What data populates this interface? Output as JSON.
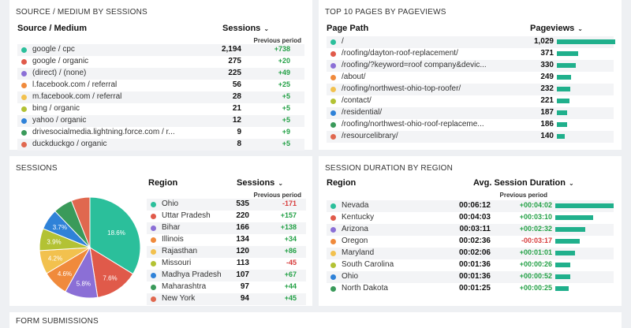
{
  "source_medium": {
    "title": "SOURCE / MEDIUM BY SESSIONS",
    "col_label": "Source / Medium",
    "col_value": "Sessions",
    "col_prev": "Previous period",
    "rows": [
      {
        "label": "google / cpc",
        "value": "2,194",
        "change": "+738",
        "color": "#2bbf9b"
      },
      {
        "label": "google / organic",
        "value": "275",
        "change": "+20",
        "color": "#e05a4a"
      },
      {
        "label": "(direct) / (none)",
        "value": "225",
        "change": "+49",
        "color": "#8b6fd6"
      },
      {
        "label": "l.facebook.com / referral",
        "value": "56",
        "change": "+25",
        "color": "#f08a3c"
      },
      {
        "label": "m.facebook.com / referral",
        "value": "28",
        "change": "+5",
        "color": "#f2c14e"
      },
      {
        "label": "bing / organic",
        "value": "21",
        "change": "+5",
        "color": "#b3c234"
      },
      {
        "label": "yahoo / organic",
        "value": "12",
        "change": "+5",
        "color": "#2f82d8"
      },
      {
        "label": "drivesocialmedia.lightning.force.com / r...",
        "value": "9",
        "change": "+9",
        "color": "#3a9a5a"
      },
      {
        "label": "duckduckgo / organic",
        "value": "8",
        "change": "+5",
        "color": "#e0684f"
      }
    ]
  },
  "top_pages": {
    "title": "TOP 10 PAGES BY PAGEVIEWS",
    "col_label": "Page Path",
    "col_value": "Pageviews",
    "rows": [
      {
        "label": "/",
        "value": "1,029",
        "pct": 1.0,
        "color": "#2bbf9b"
      },
      {
        "label": "/roofing/dayton-roof-replacement/",
        "value": "371",
        "pct": 0.36,
        "color": "#e05a4a"
      },
      {
        "label": "/roofing/?keyword=roof company&devic...",
        "value": "330",
        "pct": 0.32,
        "color": "#8b6fd6"
      },
      {
        "label": "/about/",
        "value": "249",
        "pct": 0.24,
        "color": "#f08a3c"
      },
      {
        "label": "/roofing/northwest-ohio-top-roofer/",
        "value": "232",
        "pct": 0.225,
        "color": "#f2c14e"
      },
      {
        "label": "/contact/",
        "value": "221",
        "pct": 0.215,
        "color": "#b3c234"
      },
      {
        "label": "/residential/",
        "value": "187",
        "pct": 0.18,
        "color": "#2f82d8"
      },
      {
        "label": "/roofing/northwest-ohio-roof-replaceme...",
        "value": "186",
        "pct": 0.18,
        "color": "#3a9a5a"
      },
      {
        "label": "/resourcelibrary/",
        "value": "140",
        "pct": 0.135,
        "color": "#e0684f"
      }
    ]
  },
  "sessions": {
    "title": "SESSIONS",
    "col_label": "Region",
    "col_value": "Sessions",
    "col_prev": "Previous period",
    "rows": [
      {
        "label": "Ohio",
        "value": "535",
        "change": "-171",
        "color": "#2bbf9b"
      },
      {
        "label": "Uttar Pradesh",
        "value": "220",
        "change": "+157",
        "color": "#e05a4a"
      },
      {
        "label": "Bihar",
        "value": "166",
        "change": "+138",
        "color": "#8b6fd6"
      },
      {
        "label": "Illinois",
        "value": "134",
        "change": "+34",
        "color": "#f08a3c"
      },
      {
        "label": "Rajasthan",
        "value": "120",
        "change": "+86",
        "color": "#f2c14e"
      },
      {
        "label": "Missouri",
        "value": "113",
        "change": "-45",
        "color": "#b3c234"
      },
      {
        "label": "Madhya Pradesh",
        "value": "107",
        "change": "+67",
        "color": "#2f82d8"
      },
      {
        "label": "Maharashtra",
        "value": "97",
        "change": "+44",
        "color": "#3a9a5a"
      },
      {
        "label": "New York",
        "value": "94",
        "change": "+45",
        "color": "#e0684f"
      }
    ],
    "pie": [
      {
        "value": 18.6,
        "label": "18.6%",
        "color": "#2bbf9b"
      },
      {
        "value": 7.6,
        "label": "7.6%",
        "color": "#e05a4a"
      },
      {
        "value": 5.8,
        "label": "5.8%",
        "color": "#8b6fd6"
      },
      {
        "value": 4.6,
        "label": "4.6%",
        "color": "#f08a3c"
      },
      {
        "value": 4.2,
        "label": "4.2%",
        "color": "#f2c14e"
      },
      {
        "value": 3.9,
        "label": "3.9%",
        "color": "#b3c234"
      },
      {
        "value": 3.7,
        "label": "3.7%",
        "color": "#2f82d8"
      },
      {
        "value": 3.4,
        "label": "",
        "color": "#3a9a5a"
      },
      {
        "value": 3.3,
        "label": "",
        "color": "#e0684f"
      }
    ]
  },
  "duration": {
    "title": "SESSION DURATION BY REGION",
    "col_label": "Region",
    "col_value": "Avg. Session Duration",
    "col_prev": "Previous period",
    "rows": [
      {
        "label": "Nevada",
        "value": "00:06:12",
        "change": "+00:04:02",
        "pct": 1.0,
        "color": "#2bbf9b"
      },
      {
        "label": "Kentucky",
        "value": "00:04:03",
        "change": "+00:03:10",
        "pct": 0.65,
        "color": "#e05a4a"
      },
      {
        "label": "Arizona",
        "value": "00:03:11",
        "change": "+00:02:32",
        "pct": 0.51,
        "color": "#8b6fd6"
      },
      {
        "label": "Oregon",
        "value": "00:02:36",
        "change": "-00:03:17",
        "pct": 0.42,
        "color": "#f08a3c"
      },
      {
        "label": "Maryland",
        "value": "00:02:06",
        "change": "+00:01:01",
        "pct": 0.34,
        "color": "#f2c14e"
      },
      {
        "label": "South Carolina",
        "value": "00:01:36",
        "change": "+00:00:26",
        "pct": 0.26,
        "color": "#b3c234"
      },
      {
        "label": "Ohio",
        "value": "00:01:36",
        "change": "+00:00:52",
        "pct": 0.26,
        "color": "#2f82d8"
      },
      {
        "label": "North Dakota",
        "value": "00:01:25",
        "change": "+00:00:25",
        "pct": 0.23,
        "color": "#3a9a5a"
      }
    ]
  },
  "form_submissions": {
    "title": "FORM SUBMISSIONS"
  }
}
